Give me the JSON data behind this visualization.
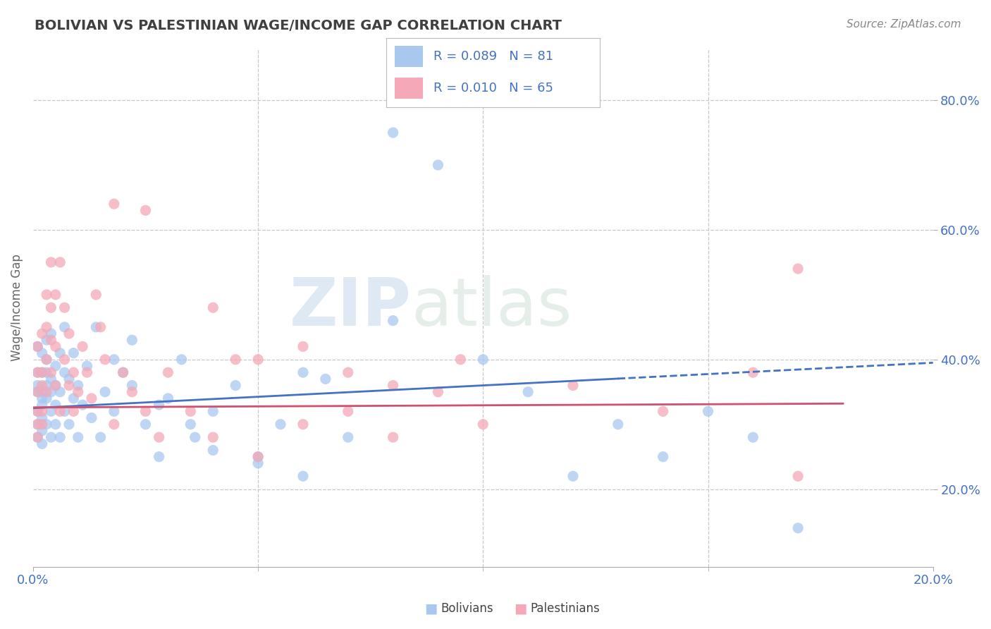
{
  "title": "BOLIVIAN VS PALESTINIAN WAGE/INCOME GAP CORRELATION CHART",
  "source_text": "Source: ZipAtlas.com",
  "ylabel": "Wage/Income Gap",
  "xlim": [
    0.0,
    0.2
  ],
  "ylim": [
    0.08,
    0.88
  ],
  "yticks": [
    0.2,
    0.4,
    0.6,
    0.8
  ],
  "ytick_labels": [
    "20.0%",
    "40.0%",
    "60.0%",
    "80.0%"
  ],
  "xtick_labels": [
    "0.0%",
    "20.0%"
  ],
  "watermark_zip": "ZIP",
  "watermark_atlas": "atlas",
  "legend_r_bolivian": "R = 0.089",
  "legend_n_bolivian": "N = 81",
  "legend_r_palestinian": "R = 0.010",
  "legend_n_palestinian": "N = 65",
  "bolivian_color": "#a8c8f0",
  "palestinian_color": "#f4a8b8",
  "trend_bolivian_color": "#4472c4",
  "trend_palestinian_color": "#d05070",
  "background_color": "#ffffff",
  "grid_color": "#c8c8c8",
  "title_color": "#404040",
  "axis_label_color": "#4472c4",
  "tick_color": "#4472c4",
  "legend_text_color": "#4472c4",
  "bolivians_x": [
    0.001,
    0.001,
    0.001,
    0.001,
    0.001,
    0.001,
    0.001,
    0.002,
    0.002,
    0.002,
    0.002,
    0.002,
    0.002,
    0.002,
    0.002,
    0.003,
    0.003,
    0.003,
    0.003,
    0.003,
    0.003,
    0.004,
    0.004,
    0.004,
    0.004,
    0.004,
    0.005,
    0.005,
    0.005,
    0.005,
    0.006,
    0.006,
    0.006,
    0.007,
    0.007,
    0.007,
    0.008,
    0.008,
    0.009,
    0.009,
    0.01,
    0.01,
    0.011,
    0.012,
    0.013,
    0.014,
    0.015,
    0.016,
    0.018,
    0.02,
    0.022,
    0.025,
    0.028,
    0.03,
    0.033,
    0.036,
    0.04,
    0.045,
    0.05,
    0.055,
    0.06,
    0.065,
    0.07,
    0.08,
    0.09,
    0.1,
    0.11,
    0.12,
    0.13,
    0.14,
    0.15,
    0.16,
    0.17,
    0.018,
    0.022,
    0.028,
    0.035,
    0.04,
    0.05,
    0.06,
    0.08
  ],
  "bolivians_y": [
    0.32,
    0.38,
    0.28,
    0.35,
    0.3,
    0.42,
    0.36,
    0.34,
    0.29,
    0.38,
    0.33,
    0.41,
    0.27,
    0.35,
    0.31,
    0.36,
    0.3,
    0.43,
    0.38,
    0.34,
    0.4,
    0.32,
    0.37,
    0.44,
    0.28,
    0.35,
    0.33,
    0.39,
    0.3,
    0.36,
    0.41,
    0.28,
    0.35,
    0.32,
    0.38,
    0.45,
    0.3,
    0.37,
    0.34,
    0.41,
    0.28,
    0.36,
    0.33,
    0.39,
    0.31,
    0.45,
    0.28,
    0.35,
    0.32,
    0.38,
    0.36,
    0.3,
    0.25,
    0.34,
    0.4,
    0.28,
    0.32,
    0.36,
    0.25,
    0.3,
    0.22,
    0.37,
    0.28,
    0.75,
    0.7,
    0.4,
    0.35,
    0.22,
    0.3,
    0.25,
    0.32,
    0.28,
    0.14,
    0.4,
    0.43,
    0.33,
    0.3,
    0.26,
    0.24,
    0.38,
    0.46
  ],
  "palestinians_x": [
    0.001,
    0.001,
    0.001,
    0.001,
    0.001,
    0.001,
    0.002,
    0.002,
    0.002,
    0.002,
    0.002,
    0.003,
    0.003,
    0.003,
    0.003,
    0.004,
    0.004,
    0.004,
    0.004,
    0.005,
    0.005,
    0.005,
    0.006,
    0.006,
    0.007,
    0.007,
    0.008,
    0.008,
    0.009,
    0.009,
    0.01,
    0.011,
    0.012,
    0.013,
    0.014,
    0.015,
    0.016,
    0.018,
    0.02,
    0.022,
    0.025,
    0.028,
    0.03,
    0.035,
    0.04,
    0.045,
    0.05,
    0.06,
    0.07,
    0.08,
    0.09,
    0.1,
    0.12,
    0.14,
    0.16,
    0.17,
    0.04,
    0.05,
    0.06,
    0.07,
    0.08,
    0.095,
    0.018,
    0.025,
    0.17
  ],
  "palestinians_y": [
    0.32,
    0.38,
    0.3,
    0.35,
    0.42,
    0.28,
    0.36,
    0.3,
    0.44,
    0.38,
    0.32,
    0.5,
    0.4,
    0.35,
    0.45,
    0.55,
    0.48,
    0.38,
    0.43,
    0.36,
    0.5,
    0.42,
    0.55,
    0.32,
    0.48,
    0.4,
    0.36,
    0.44,
    0.32,
    0.38,
    0.35,
    0.42,
    0.38,
    0.34,
    0.5,
    0.45,
    0.4,
    0.3,
    0.38,
    0.35,
    0.32,
    0.28,
    0.38,
    0.32,
    0.28,
    0.4,
    0.25,
    0.3,
    0.32,
    0.28,
    0.35,
    0.3,
    0.36,
    0.32,
    0.38,
    0.22,
    0.48,
    0.4,
    0.42,
    0.38,
    0.36,
    0.4,
    0.64,
    0.63,
    0.54
  ],
  "trend_b_x0": 0.0,
  "trend_b_x1": 0.2,
  "trend_b_y0": 0.325,
  "trend_b_y1": 0.395,
  "trend_b_solid_end": 0.13,
  "trend_p_x0": 0.0,
  "trend_p_x1": 0.18,
  "trend_p_y0": 0.326,
  "trend_p_y1": 0.332
}
